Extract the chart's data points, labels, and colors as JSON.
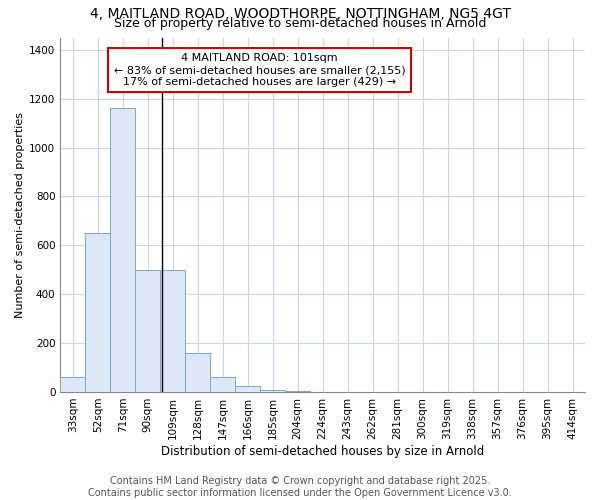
{
  "title1": "4, MAITLAND ROAD, WOODTHORPE, NOTTINGHAM, NG5 4GT",
  "title2": "Size of property relative to semi-detached houses in Arnold",
  "xlabel": "Distribution of semi-detached houses by size in Arnold",
  "ylabel": "Number of semi-detached properties",
  "bar_color": "#dce8f5",
  "bar_edge_color": "#7aaac8",
  "categories": [
    "33sqm",
    "52sqm",
    "71sqm",
    "90sqm",
    "109sqm",
    "128sqm",
    "147sqm",
    "166sqm",
    "185sqm",
    "204sqm",
    "224sqm",
    "243sqm",
    "262sqm",
    "281sqm",
    "300sqm",
    "319sqm",
    "338sqm",
    "357sqm",
    "376sqm",
    "395sqm",
    "414sqm"
  ],
  "values": [
    60,
    650,
    1160,
    500,
    500,
    160,
    60,
    25,
    10,
    5,
    0,
    0,
    0,
    0,
    0,
    0,
    0,
    0,
    0,
    0,
    0
  ],
  "property_label": "4 MAITLAND ROAD: 101sqm",
  "pct_smaller": 83,
  "pct_smaller_n": "2,155",
  "pct_larger": 17,
  "pct_larger_n": 429,
  "vline_x": 3.58,
  "ylim": [
    0,
    1450
  ],
  "yticks": [
    0,
    200,
    400,
    600,
    800,
    1000,
    1200,
    1400
  ],
  "annotation_box_color": "#cc0000",
  "footer_text": "Contains HM Land Registry data © Crown copyright and database right 2025.\nContains public sector information licensed under the Open Government Licence v3.0.",
  "background_color": "#ffffff",
  "grid_color": "#c8d8e8",
  "title1_fontsize": 10,
  "title2_fontsize": 9,
  "annot_fontsize": 8,
  "footer_fontsize": 7,
  "axis_label_fontsize": 8,
  "tick_fontsize": 7.5
}
